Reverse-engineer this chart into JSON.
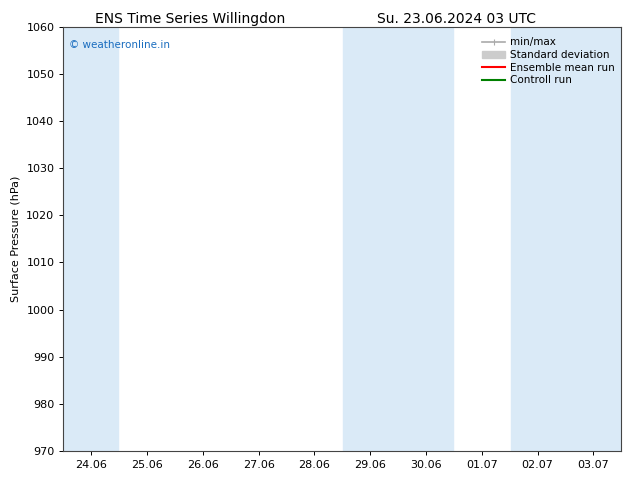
{
  "title_left": "ENS Time Series Willingdon",
  "title_right": "Su. 23.06.2024 03 UTC",
  "ylabel": "Surface Pressure (hPa)",
  "ylim": [
    970,
    1060
  ],
  "yticks": [
    970,
    980,
    990,
    1000,
    1010,
    1020,
    1030,
    1040,
    1050,
    1060
  ],
  "xtick_labels": [
    "24.06",
    "25.06",
    "26.06",
    "27.06",
    "28.06",
    "29.06",
    "30.06",
    "01.07",
    "02.07",
    "03.07"
  ],
  "shaded_band_color": "#daeaf7",
  "watermark": "© weatheronline.in",
  "watermark_color": "#1a6dbf",
  "legend_entries": [
    {
      "label": "min/max",
      "color": "#aaaaaa",
      "lw": 1.2,
      "style": "minmax"
    },
    {
      "label": "Standard deviation",
      "color": "#cccccc",
      "lw": 8,
      "style": "bar"
    },
    {
      "label": "Ensemble mean run",
      "color": "#ff0000",
      "lw": 1.5,
      "style": "line"
    },
    {
      "label": "Controll run",
      "color": "#008000",
      "lw": 1.5,
      "style": "line"
    }
  ],
  "background_color": "#ffffff",
  "font_color": "#000000",
  "title_fontsize": 10,
  "label_fontsize": 8,
  "tick_fontsize": 8,
  "legend_fontsize": 7.5,
  "band1": [
    -0.5,
    0.48
  ],
  "band2": [
    4.52,
    6.48
  ],
  "band3": [
    7.52,
    9.5
  ]
}
